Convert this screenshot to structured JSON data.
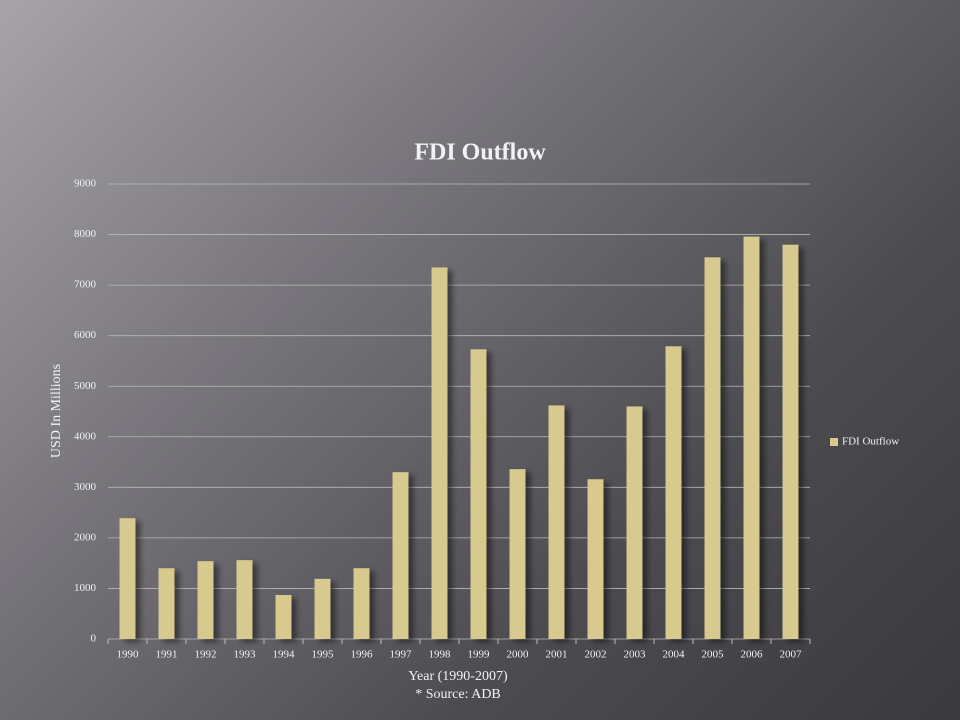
{
  "chart_data": {
    "type": "bar",
    "title": "FDI Outflow",
    "x_label": "Year (1990-2007)",
    "y_label": "USD In Millions",
    "note": "* Source: ADB",
    "categories": [
      "1990",
      "1991",
      "1992",
      "1993",
      "1994",
      "1995",
      "1996",
      "1997",
      "1998",
      "1999",
      "2000",
      "2001",
      "2002",
      "2003",
      "2004",
      "2005",
      "2006",
      "2007"
    ],
    "series": [
      {
        "name": "FDI Outflow",
        "color": "#d8c98e",
        "values": [
          2390,
          1400,
          1540,
          1560,
          870,
          1190,
          1400,
          3300,
          7350,
          5730,
          3360,
          4620,
          3160,
          4600,
          5790,
          7550,
          7960,
          7800
        ]
      }
    ],
    "ylim": [
      0,
      9000
    ],
    "yticks": [
      0,
      1000,
      2000,
      3000,
      4000,
      5000,
      6000,
      7000,
      8000,
      9000
    ],
    "grid": true,
    "legend": "right"
  }
}
